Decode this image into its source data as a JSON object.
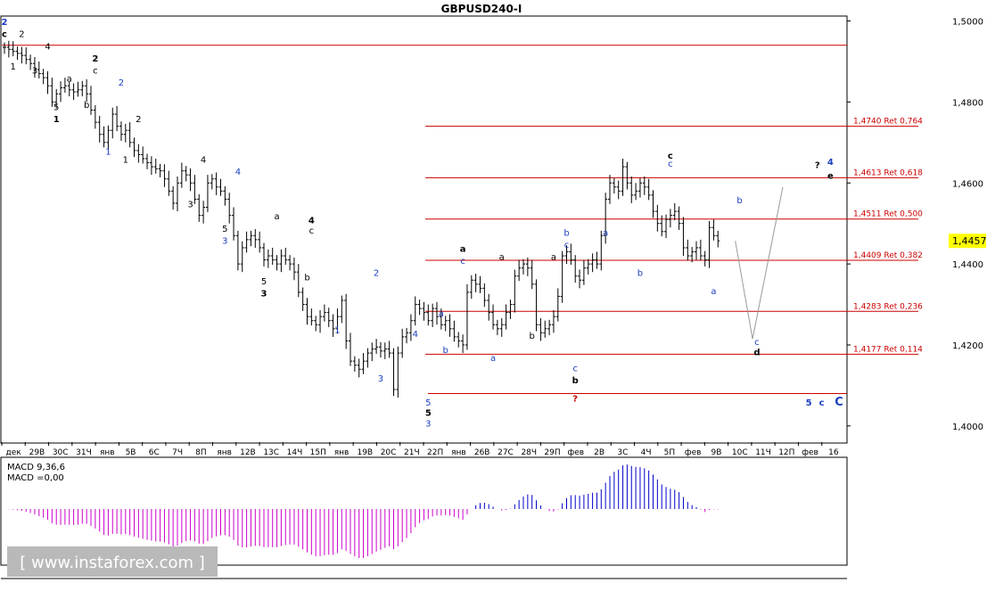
{
  "window": {
    "title": "GBPUSD240-I"
  },
  "watermark": {
    "text": "[ www.instaforex.com ]"
  },
  "macd": {
    "name": "MACD 9,36,6",
    "value_label": "MACD =0,00"
  },
  "colors": {
    "bull_macd": "#0000cc",
    "bear_macd": "#cc00cc",
    "levels": "#cc0000",
    "candles": "#000000",
    "projection": "#999999",
    "wave_blue": "#1a3fbf",
    "wave_red": "#cc0000"
  },
  "chart_data": {
    "type": "candlestick",
    "title": "GBPUSD240-I",
    "ylim": [
      1.396,
      1.501
    ],
    "y_ticks": [
      "1,5000",
      "1,4800",
      "1,4600",
      "1,4400",
      "1,4200",
      "1,4000"
    ],
    "y_tick_values": [
      1.5,
      1.48,
      1.46,
      1.44,
      1.42,
      1.4
    ],
    "current_price": "1,4457",
    "x_ticks": [
      "дек",
      "29В",
      "30С",
      "31Ч",
      "янв",
      "5В",
      "6С",
      "7Ч",
      "8П",
      "янв",
      "12В",
      "13С",
      "14Ч",
      "15П",
      "янв",
      "19В",
      "20С",
      "21Ч",
      "22П",
      "янв",
      "26В",
      "27С",
      "28Ч",
      "29П",
      "фев",
      "2В",
      "3С",
      "4Ч",
      "5П",
      "фев",
      "9В",
      "10С",
      "11Ч",
      "12П",
      "фев",
      "16"
    ],
    "closes": [
      1.4935,
      1.493,
      1.4925,
      1.492,
      1.4915,
      1.4905,
      1.4895,
      1.488,
      1.487,
      1.486,
      1.484,
      1.48,
      1.482,
      1.4835,
      1.484,
      1.483,
      1.4825,
      1.483,
      1.484,
      1.482,
      1.478,
      1.475,
      1.472,
      1.47,
      1.473,
      1.477,
      1.474,
      1.472,
      1.473,
      1.47,
      1.468,
      1.467,
      1.466,
      1.465,
      1.464,
      1.4635,
      1.463,
      1.461,
      1.458,
      1.455,
      1.46,
      1.463,
      1.462,
      1.46,
      1.456,
      1.452,
      1.454,
      1.46,
      1.461,
      1.459,
      1.458,
      1.456,
      1.452,
      1.447,
      1.44,
      1.444,
      1.446,
      1.447,
      1.446,
      1.444,
      1.441,
      1.442,
      1.441,
      1.44,
      1.442,
      1.441,
      1.44,
      1.438,
      1.433,
      1.43,
      1.427,
      1.426,
      1.425,
      1.427,
      1.428,
      1.426,
      1.424,
      1.427,
      1.431,
      1.421,
      1.416,
      1.415,
      1.414,
      1.416,
      1.418,
      1.419,
      1.4195,
      1.4185,
      1.419,
      1.418,
      1.409,
      1.418,
      1.422,
      1.423,
      1.426,
      1.43,
      1.429,
      1.428,
      1.426,
      1.429,
      1.427,
      1.425,
      1.426,
      1.424,
      1.422,
      1.421,
      1.42,
      1.433,
      1.436,
      1.435,
      1.434,
      1.431,
      1.428,
      1.425,
      1.424,
      1.425,
      1.428,
      1.43,
      1.437,
      1.439,
      1.44,
      1.439,
      1.435,
      1.425,
      1.423,
      1.424,
      1.425,
      1.427,
      1.432,
      1.442,
      1.443,
      1.441,
      1.437,
      1.436,
      1.439,
      1.44,
      1.441,
      1.44,
      1.447,
      1.456,
      1.46,
      1.459,
      1.458,
      1.464,
      1.46,
      1.457,
      1.458,
      1.46,
      1.459,
      1.457,
      1.453,
      1.45,
      1.448,
      1.451,
      1.452,
      1.453,
      1.45,
      1.444,
      1.442,
      1.443,
      1.444,
      1.442,
      1.441,
      1.449,
      1.447,
      1.4457
    ],
    "levels": [
      {
        "price": 1.494,
        "label": ""
      },
      {
        "price": 1.474,
        "label": "1,4740 Ret 0,764"
      },
      {
        "price": 1.4613,
        "label": "1,4613 Ret 0,618"
      },
      {
        "price": 1.4511,
        "label": "1,4511 Ret 0,500"
      },
      {
        "price": 1.4409,
        "label": "1,4409 Ret 0,382"
      },
      {
        "price": 1.4283,
        "label": "1,4283 Ret 0,236"
      },
      {
        "price": 1.4177,
        "label": "1,4177 Ret 0,114"
      },
      {
        "price": 1.408,
        "label": ""
      }
    ],
    "projection": [
      [
        169,
        1.4457
      ],
      [
        173,
        1.4215
      ],
      [
        180,
        1.459
      ]
    ],
    "wave_labels": [
      {
        "t": "2",
        "i": 0,
        "p": 1.499,
        "c": "blue",
        "b": true
      },
      {
        "t": "c",
        "i": 0,
        "p": 1.496,
        "c": "black",
        "b": true
      },
      {
        "t": "2",
        "i": 4,
        "p": 1.496,
        "c": "black"
      },
      {
        "t": "4",
        "i": 10,
        "p": 1.493,
        "c": "black"
      },
      {
        "t": "1",
        "i": 2,
        "p": 1.488,
        "c": "black"
      },
      {
        "t": "3",
        "i": 7,
        "p": 1.487,
        "c": "black"
      },
      {
        "t": "2",
        "i": 21,
        "p": 1.49,
        "c": "black",
        "b": true
      },
      {
        "t": "c",
        "i": 21,
        "p": 1.487,
        "c": "black"
      },
      {
        "t": "a",
        "i": 15,
        "p": 1.485,
        "c": "black"
      },
      {
        "t": "b",
        "i": 19,
        "p": 1.4785,
        "c": "black"
      },
      {
        "t": "5",
        "i": 12,
        "p": 1.478,
        "c": "black"
      },
      {
        "t": "1",
        "i": 12,
        "p": 1.475,
        "c": "black",
        "b": true
      },
      {
        "t": "2",
        "i": 27,
        "p": 1.484,
        "c": "blue"
      },
      {
        "t": "2",
        "i": 31,
        "p": 1.475,
        "c": "black"
      },
      {
        "t": "1",
        "i": 24,
        "p": 1.467,
        "c": "blue"
      },
      {
        "t": "1",
        "i": 28,
        "p": 1.465,
        "c": "black"
      },
      {
        "t": "4",
        "i": 46,
        "p": 1.465,
        "c": "black"
      },
      {
        "t": "4",
        "i": 54,
        "p": 1.462,
        "c": "blue"
      },
      {
        "t": "3",
        "i": 43,
        "p": 1.454,
        "c": "black"
      },
      {
        "t": "5",
        "i": 51,
        "p": 1.448,
        "c": "black"
      },
      {
        "t": "3",
        "i": 51,
        "p": 1.445,
        "c": "blue"
      },
      {
        "t": "a",
        "i": 63,
        "p": 1.451,
        "c": "black"
      },
      {
        "t": "4",
        "i": 71,
        "p": 1.45,
        "c": "black",
        "b": true
      },
      {
        "t": "c",
        "i": 71,
        "p": 1.4475,
        "c": "black"
      },
      {
        "t": "b",
        "i": 70,
        "p": 1.436,
        "c": "black"
      },
      {
        "t": "5",
        "i": 60,
        "p": 1.435,
        "c": "black"
      },
      {
        "t": "3",
        "i": 60,
        "p": 1.432,
        "c": "black",
        "b": true
      },
      {
        "t": "2",
        "i": 86,
        "p": 1.437,
        "c": "blue"
      },
      {
        "t": "1",
        "i": 77,
        "p": 1.423,
        "c": "blue"
      },
      {
        "t": "4",
        "i": 95,
        "p": 1.422,
        "c": "blue"
      },
      {
        "t": "3",
        "i": 87,
        "p": 1.411,
        "c": "blue"
      },
      {
        "t": "5",
        "i": 98,
        "p": 1.405,
        "c": "blue"
      },
      {
        "t": "5",
        "i": 98,
        "p": 1.4025,
        "c": "black",
        "b": true
      },
      {
        "t": "3",
        "i": 98,
        "p": 1.3998,
        "c": "blue"
      },
      {
        "t": "a",
        "i": 101,
        "p": 1.427,
        "c": "blue"
      },
      {
        "t": "b",
        "i": 102,
        "p": 1.418,
        "c": "blue"
      },
      {
        "t": "a",
        "i": 106,
        "p": 1.443,
        "c": "black",
        "b": true
      },
      {
        "t": "c",
        "i": 106,
        "p": 1.44,
        "c": "blue"
      },
      {
        "t": "a",
        "i": 115,
        "p": 1.441,
        "c": "black"
      },
      {
        "t": "a",
        "i": 113,
        "p": 1.416,
        "c": "blue"
      },
      {
        "t": "b",
        "i": 122,
        "p": 1.4215,
        "c": "black"
      },
      {
        "t": "b",
        "i": 130,
        "p": 1.447,
        "c": "blue"
      },
      {
        "t": "c",
        "i": 130,
        "p": 1.444,
        "c": "blue"
      },
      {
        "t": "a",
        "i": 127,
        "p": 1.441,
        "c": "black"
      },
      {
        "t": "c",
        "i": 132,
        "p": 1.4135,
        "c": "blue"
      },
      {
        "t": "b",
        "i": 132,
        "p": 1.4105,
        "c": "black",
        "b": true
      },
      {
        "t": "?",
        "i": 132,
        "p": 1.406,
        "c": "red",
        "b": true
      },
      {
        "t": "a",
        "i": 139,
        "p": 1.447,
        "c": "blue"
      },
      {
        "t": "b",
        "i": 147,
        "p": 1.437,
        "c": "blue"
      },
      {
        "t": "c",
        "i": 154,
        "p": 1.466,
        "c": "black",
        "b": true
      },
      {
        "t": "c",
        "i": 154,
        "p": 1.464,
        "c": "blue"
      },
      {
        "t": "b",
        "i": 170,
        "p": 1.455,
        "c": "blue"
      },
      {
        "t": "a",
        "i": 164,
        "p": 1.4325,
        "c": "blue"
      },
      {
        "t": "c",
        "i": 174,
        "p": 1.42,
        "c": "blue"
      },
      {
        "t": "d",
        "i": 174,
        "p": 1.4175,
        "c": "black",
        "b": true
      },
      {
        "t": "?",
        "i": 188,
        "p": 1.4637,
        "c": "black",
        "b": true
      },
      {
        "t": "4",
        "i": 191,
        "p": 1.4645,
        "c": "blue",
        "b": true
      },
      {
        "t": "e",
        "i": 191,
        "p": 1.461,
        "c": "black",
        "b": true
      },
      {
        "t": "5",
        "i": 186,
        "p": 1.405,
        "c": "blue",
        "b": true
      },
      {
        "t": "c",
        "i": 189,
        "p": 1.405,
        "c": "blue",
        "b": true
      },
      {
        "t": "C",
        "i": 193,
        "p": 1.405,
        "c": "blue",
        "b": true,
        "s": 13
      }
    ]
  }
}
